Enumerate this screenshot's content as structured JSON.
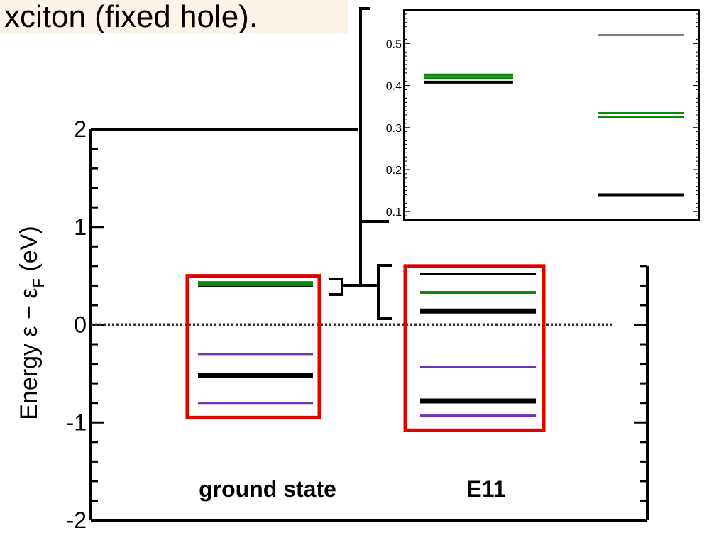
{
  "title_fragment": "xciton (fixed hole).",
  "chart_data": [
    {
      "type": "energy-level",
      "ylabel": "Energy ε − ε",
      "ylabel_sub": "F",
      "ylabel_unit": " (eV)",
      "ylim": [
        -2,
        2
      ],
      "yticks": [
        {
          "value": 2,
          "label": "2"
        },
        {
          "value": 1,
          "label": "1"
        },
        {
          "value": 0,
          "label": "0"
        },
        {
          "value": -1,
          "label": "-1"
        },
        {
          "value": -2,
          "label": "-2"
        }
      ],
      "fermi_level": 0,
      "categories": [
        {
          "label": "ground state",
          "box_color": "#e00000",
          "box_range": [
            -0.95,
            0.5
          ],
          "levels": [
            {
              "energy": 0.41,
              "color": "#000000",
              "weight": "thick"
            },
            {
              "energy": 0.42,
              "color": "#0a8a0a",
              "weight": "thick"
            },
            {
              "energy": -0.3,
              "color": "#7030c0",
              "weight": "thin"
            },
            {
              "energy": -0.52,
              "color": "#000000",
              "weight": "thick"
            },
            {
              "energy": -0.8,
              "color": "#7030c0",
              "weight": "thin"
            }
          ]
        },
        {
          "label": "E11",
          "box_color": "#e00000",
          "box_range": [
            -1.08,
            0.6
          ],
          "levels": [
            {
              "energy": 0.52,
              "color": "#000000",
              "weight": "thin"
            },
            {
              "energy": 0.33,
              "color": "#0a8a0a",
              "weight": "medium"
            },
            {
              "energy": 0.14,
              "color": "#000000",
              "weight": "thick"
            },
            {
              "energy": -0.43,
              "color": "#7030c0",
              "weight": "thin"
            },
            {
              "energy": -0.78,
              "color": "#000000",
              "weight": "thick"
            },
            {
              "energy": -0.93,
              "color": "#7030c0",
              "weight": "thin"
            }
          ]
        }
      ]
    },
    {
      "type": "energy-level-inset",
      "ylim": [
        0.08,
        0.58
      ],
      "yticks": [
        {
          "value": 0.5,
          "label": "0.5"
        },
        {
          "value": 0.4,
          "label": "0.4"
        },
        {
          "value": 0.3,
          "label": "0.3"
        },
        {
          "value": 0.2,
          "label": "0.2"
        },
        {
          "value": 0.1,
          "label": "0.1"
        }
      ],
      "columns": [
        {
          "levels": [
            {
              "energy": 0.425,
              "color": "#0a8a0a",
              "weight": "thick"
            },
            {
              "energy": 0.418,
              "color": "#0a8a0a",
              "weight": "thick"
            },
            {
              "energy": 0.408,
              "color": "#000000",
              "weight": "thick"
            }
          ]
        },
        {
          "levels": [
            {
              "energy": 0.52,
              "color": "#000000",
              "weight": "thin"
            },
            {
              "energy": 0.335,
              "color": "#0a8a0a",
              "weight": "thin"
            },
            {
              "energy": 0.325,
              "color": "#0a8a0a",
              "weight": "thin"
            },
            {
              "energy": 0.14,
              "color": "#000000",
              "weight": "thick"
            }
          ]
        }
      ]
    }
  ]
}
